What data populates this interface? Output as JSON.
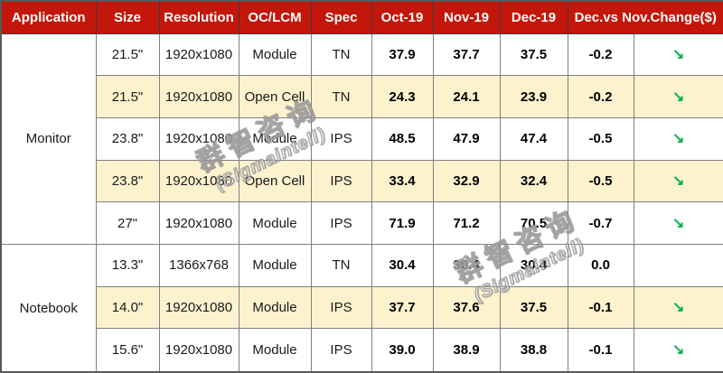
{
  "chart_data": {
    "type": "table",
    "headers": [
      "Application",
      "Size",
      "Resolution",
      "OC/LCM",
      "Spec",
      "Oct-19",
      "Nov-19",
      "Dec-19",
      "Dec.vs Nov.Change($)"
    ],
    "groups": [
      {
        "application": "Monitor",
        "rows": [
          {
            "size": "21.5\"",
            "resolution": "1920x1080",
            "oc_lcm": "Module",
            "spec": "TN",
            "oct_19": "37.9",
            "nov_19": "37.7",
            "dec_19": "37.5",
            "change": "-0.2",
            "trend": "down",
            "highlight": false
          },
          {
            "size": "21.5\"",
            "resolution": "1920x1080",
            "oc_lcm": "Open Cell",
            "spec": "TN",
            "oct_19": "24.3",
            "nov_19": "24.1",
            "dec_19": "23.9",
            "change": "-0.2",
            "trend": "down",
            "highlight": true
          },
          {
            "size": "23.8\"",
            "resolution": "1920x1080",
            "oc_lcm": "Module",
            "spec": "IPS",
            "oct_19": "48.5",
            "nov_19": "47.9",
            "dec_19": "47.4",
            "change": "-0.5",
            "trend": "down",
            "highlight": false
          },
          {
            "size": "23.8\"",
            "resolution": "1920x1080",
            "oc_lcm": "Open Cell",
            "spec": "IPS",
            "oct_19": "33.4",
            "nov_19": "32.9",
            "dec_19": "32.4",
            "change": "-0.5",
            "trend": "down",
            "highlight": true
          },
          {
            "size": "27\"",
            "resolution": "1920x1080",
            "oc_lcm": "Module",
            "spec": "IPS",
            "oct_19": "71.9",
            "nov_19": "71.2",
            "dec_19": "70.5",
            "change": "-0.7",
            "trend": "down",
            "highlight": false
          }
        ]
      },
      {
        "application": "Notebook",
        "rows": [
          {
            "size": "13.3\"",
            "resolution": "1366x768",
            "oc_lcm": "Module",
            "spec": "TN",
            "oct_19": "30.4",
            "nov_19": "30.4",
            "dec_19": "30.4",
            "change": "0.0",
            "trend": "none",
            "highlight": false
          },
          {
            "size": "14.0\"",
            "resolution": "1920x1080",
            "oc_lcm": "Module",
            "spec": "IPS",
            "oct_19": "37.7",
            "nov_19": "37.6",
            "dec_19": "37.5",
            "change": "-0.1",
            "trend": "down",
            "highlight": true
          },
          {
            "size": "15.6\"",
            "resolution": "1920x1080",
            "oc_lcm": "Module",
            "spec": "IPS",
            "oct_19": "39.0",
            "nov_19": "38.9",
            "dec_19": "38.8",
            "change": "-0.1",
            "trend": "down",
            "highlight": false
          }
        ]
      }
    ]
  },
  "icons": {
    "trend_down": "↘"
  },
  "watermark": {
    "line1": "群智咨询",
    "line2": "(Sigmaintell)"
  },
  "colors": {
    "header_bg": "#C2170A",
    "header_text": "#FFFFFF",
    "row_highlight": "#FCF2CE",
    "inner_border": "#7F7F7F",
    "outer_border": "#595959",
    "trend_down_green": "#00B050",
    "watermark_outline": "#919191"
  }
}
